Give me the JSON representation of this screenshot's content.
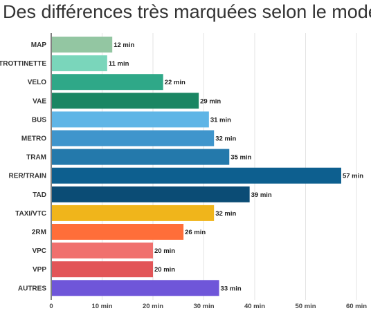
{
  "title": "Des différences très marquées selon le mode",
  "chart_data": {
    "type": "bar",
    "orientation": "horizontal",
    "title": "Des différences très marquées selon le mode",
    "xlabel": "",
    "ylabel": "",
    "xlim": [
      0,
      60
    ],
    "grid": true,
    "legend": "none",
    "value_suffix": " min",
    "categories": [
      "MAP",
      "TROTTINETTE",
      "VELO",
      "VAE",
      "BUS",
      "METRO",
      "TRAM",
      "RER/TRAIN",
      "TAD",
      "TAXI/VTC",
      "2RM",
      "VPC",
      "VPP",
      "AUTRES"
    ],
    "values": [
      12,
      11,
      22,
      29,
      31,
      32,
      35,
      57,
      39,
      32,
      26,
      20,
      20,
      33
    ],
    "colors": [
      "#93c6a2",
      "#7ad6bb",
      "#2fa888",
      "#1a8663",
      "#5fb5e6",
      "#3f95cc",
      "#2479ab",
      "#0d5f8f",
      "#0b4c75",
      "#f0b51b",
      "#ff6e39",
      "#f0706e",
      "#e25558",
      "#6f56d9"
    ],
    "x_ticks": [
      {
        "value": 0,
        "label": "0"
      },
      {
        "value": 10,
        "label": "10 min"
      },
      {
        "value": 20,
        "label": "20 min"
      },
      {
        "value": 30,
        "label": "30 min"
      },
      {
        "value": 40,
        "label": "40 min"
      },
      {
        "value": 50,
        "label": "50 min"
      },
      {
        "value": 60,
        "label": "60 min"
      }
    ]
  }
}
